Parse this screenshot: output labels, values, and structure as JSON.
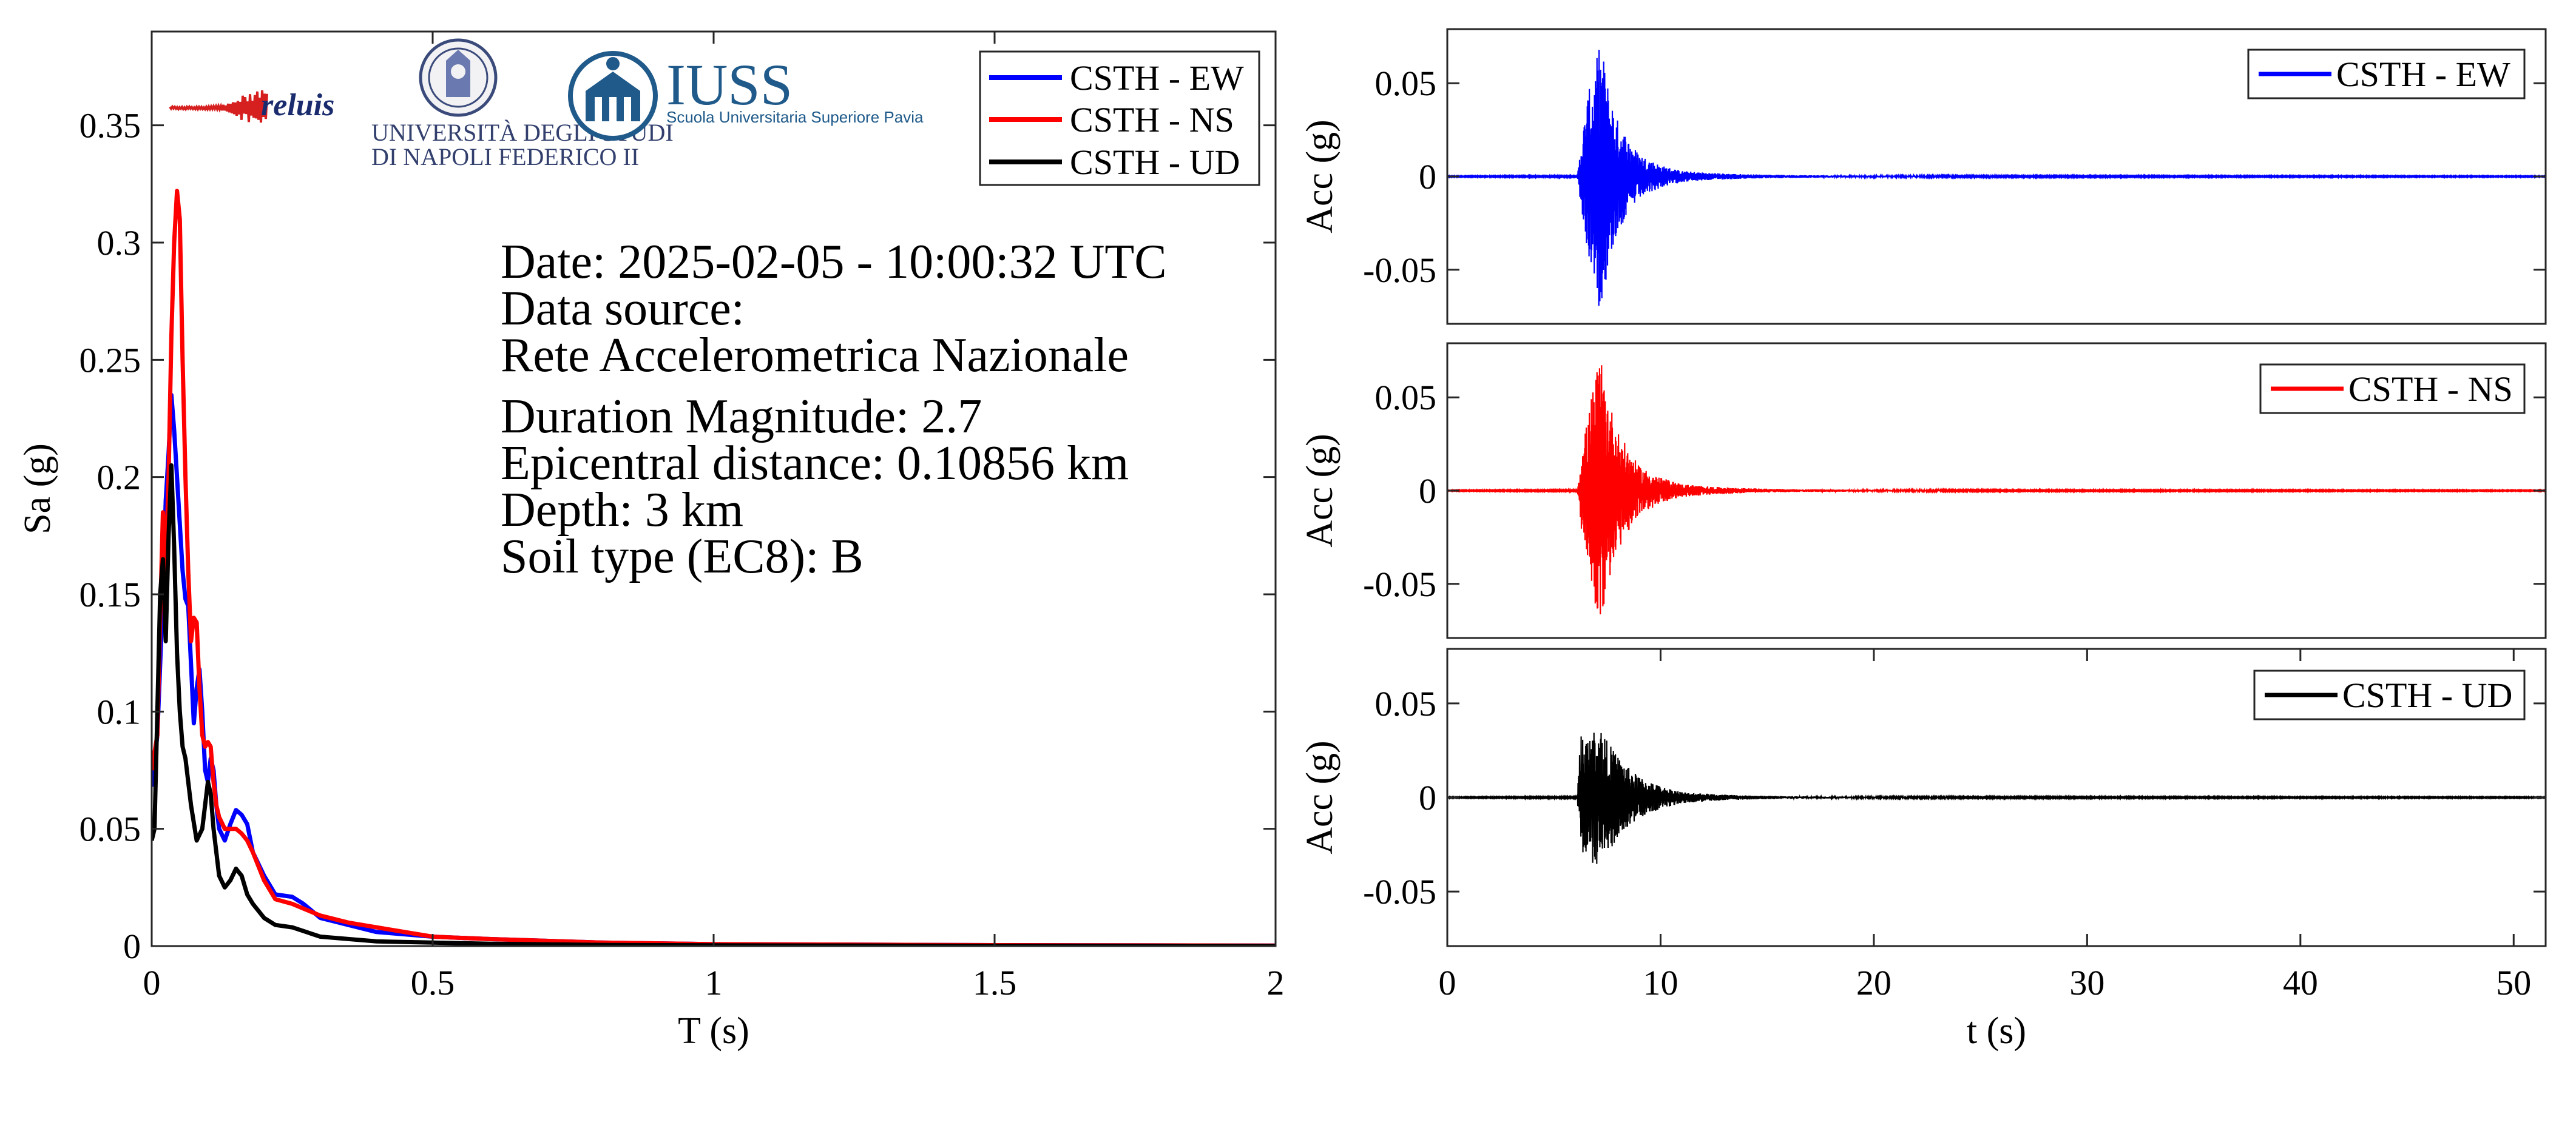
{
  "colors": {
    "ew": "#0000ff",
    "ns": "#ff0000",
    "ud": "#000000",
    "axis": "#262626"
  },
  "logos": {
    "reluis": "reluis",
    "unina_line1": "UNIVERSITÀ DEGLI STUDI",
    "unina_line2": "DI NAPOLI FEDERICO II",
    "iuss_title": "IUSS",
    "iuss_sub": "Scuola Universitaria Superiore Pavia",
    "icons": [
      "reluis-waveform-logo",
      "unina-seal-icon",
      "iuss-building-icon"
    ]
  },
  "info": {
    "date": "Date: 2025-02-05 - 10:00:32 UTC",
    "source_label": "Data source:",
    "source": "Rete Accelerometrica Nazionale",
    "magnitude": "Duration Magnitude: 2.7",
    "distance": "Epicentral distance: 0.10856 km",
    "depth": "Depth: 3 km",
    "soil": "Soil type (EC8): B"
  },
  "chart_data": [
    {
      "type": "line",
      "xlabel": "T (s)",
      "ylabel": "Sa (g)",
      "xlim": [
        0,
        2
      ],
      "ylim": [
        0,
        0.39
      ],
      "xticks": [
        "0",
        "0.5",
        "1",
        "1.5",
        "2"
      ],
      "xtick_values": [
        0,
        0.5,
        1,
        1.5,
        2
      ],
      "yticks": [
        "0",
        "0.05",
        "0.1",
        "0.15",
        "0.2",
        "0.25",
        "0.3",
        "0.35"
      ],
      "ytick_values": [
        0,
        0.05,
        0.1,
        0.15,
        0.2,
        0.25,
        0.3,
        0.35
      ],
      "legend_position": "top-right",
      "series": [
        {
          "name": "CSTH - EW",
          "color": "#0000ff",
          "x": [
            0,
            0.01,
            0.02,
            0.025,
            0.03,
            0.035,
            0.04,
            0.045,
            0.05,
            0.055,
            0.06,
            0.065,
            0.07,
            0.075,
            0.08,
            0.085,
            0.09,
            0.095,
            0.1,
            0.105,
            0.11,
            0.115,
            0.12,
            0.13,
            0.14,
            0.15,
            0.16,
            0.17,
            0.18,
            0.2,
            0.22,
            0.25,
            0.27,
            0.3,
            0.35,
            0.4,
            0.5,
            0.6,
            0.8,
            1.0,
            1.5,
            2.0
          ],
          "y": [
            0.068,
            0.09,
            0.15,
            0.19,
            0.21,
            0.235,
            0.22,
            0.2,
            0.18,
            0.16,
            0.148,
            0.145,
            0.12,
            0.095,
            0.11,
            0.118,
            0.1,
            0.075,
            0.07,
            0.08,
            0.075,
            0.06,
            0.05,
            0.045,
            0.052,
            0.058,
            0.056,
            0.052,
            0.04,
            0.03,
            0.022,
            0.021,
            0.018,
            0.012,
            0.009,
            0.006,
            0.004,
            0.003,
            0.0015,
            0.0008,
            0.0004,
            0.0002
          ]
        },
        {
          "name": "CSTH - NS",
          "color": "#ff0000",
          "x": [
            0,
            0.01,
            0.015,
            0.02,
            0.025,
            0.03,
            0.035,
            0.04,
            0.045,
            0.05,
            0.055,
            0.06,
            0.065,
            0.07,
            0.075,
            0.08,
            0.085,
            0.09,
            0.095,
            0.1,
            0.105,
            0.11,
            0.115,
            0.12,
            0.13,
            0.14,
            0.15,
            0.16,
            0.17,
            0.18,
            0.2,
            0.22,
            0.25,
            0.27,
            0.3,
            0.35,
            0.4,
            0.5,
            0.6,
            0.8,
            1.0,
            1.5,
            2.0
          ],
          "y": [
            0.075,
            0.09,
            0.14,
            0.185,
            0.16,
            0.2,
            0.26,
            0.3,
            0.322,
            0.31,
            0.25,
            0.2,
            0.16,
            0.13,
            0.14,
            0.138,
            0.11,
            0.09,
            0.085,
            0.087,
            0.085,
            0.07,
            0.06,
            0.055,
            0.05,
            0.05,
            0.05,
            0.048,
            0.045,
            0.04,
            0.028,
            0.02,
            0.018,
            0.016,
            0.013,
            0.01,
            0.008,
            0.004,
            0.003,
            0.0015,
            0.0008,
            0.0004,
            0.0002
          ]
        },
        {
          "name": "CSTH - UD",
          "color": "#000000",
          "x": [
            0,
            0.005,
            0.01,
            0.015,
            0.02,
            0.025,
            0.03,
            0.035,
            0.04,
            0.045,
            0.05,
            0.055,
            0.06,
            0.065,
            0.07,
            0.08,
            0.09,
            0.1,
            0.105,
            0.11,
            0.115,
            0.12,
            0.13,
            0.14,
            0.15,
            0.16,
            0.17,
            0.18,
            0.2,
            0.22,
            0.25,
            0.3,
            0.4,
            0.5,
            0.6,
            0.8,
            1.0,
            1.5,
            2.0
          ],
          "y": [
            0.045,
            0.05,
            0.1,
            0.15,
            0.165,
            0.13,
            0.175,
            0.205,
            0.17,
            0.125,
            0.1,
            0.085,
            0.08,
            0.07,
            0.06,
            0.045,
            0.05,
            0.07,
            0.065,
            0.05,
            0.04,
            0.03,
            0.025,
            0.028,
            0.033,
            0.03,
            0.022,
            0.018,
            0.012,
            0.009,
            0.008,
            0.004,
            0.002,
            0.0015,
            0.001,
            0.0005,
            0.0003,
            0.0001,
            0
          ]
        }
      ]
    },
    {
      "type": "line",
      "xlabel": "",
      "ylabel": "Acc (g)",
      "xlim": [
        0,
        51.5
      ],
      "ylim": [
        -0.079,
        0.079
      ],
      "yticks": [
        "-0.05",
        "0",
        "0.05"
      ],
      "ytick_values": [
        -0.05,
        0,
        0.05
      ],
      "legend_position": "top-right",
      "series": [
        {
          "name": "CSTH - EW",
          "color": "#0000ff",
          "envelope_t": [
            0,
            6.1,
            6.3,
            6.6,
            6.9,
            7.1,
            7.3,
            7.6,
            8.0,
            8.5,
            9.0,
            10.0,
            11.0,
            12.5,
            14.0,
            16.0,
            20.0,
            25.0,
            51.5
          ],
          "envelope_amp": [
            0.0002,
            0.0003,
            0.02,
            0.045,
            0.055,
            0.07,
            0.066,
            0.045,
            0.03,
            0.02,
            0.012,
            0.006,
            0.003,
            0.0018,
            0.0012,
            0.0008,
            0.0005,
            0.0003,
            0.0002
          ]
        }
      ]
    },
    {
      "type": "line",
      "xlabel": "",
      "ylabel": "Acc (g)",
      "xlim": [
        0,
        51.5
      ],
      "ylim": [
        -0.079,
        0.079
      ],
      "yticks": [
        "-0.05",
        "0",
        "0.05"
      ],
      "ytick_values": [
        -0.05,
        0,
        0.05
      ],
      "legend_position": "top-right",
      "series": [
        {
          "name": "CSTH - NS",
          "color": "#ff0000",
          "envelope_t": [
            0,
            6.1,
            6.3,
            6.6,
            6.9,
            7.1,
            7.3,
            7.6,
            8.0,
            8.5,
            9.0,
            10.0,
            11.0,
            12.5,
            14.0,
            16.0,
            20.0,
            25.0,
            51.5
          ],
          "envelope_amp": [
            0.0002,
            0.0003,
            0.022,
            0.04,
            0.06,
            0.072,
            0.065,
            0.048,
            0.032,
            0.022,
            0.013,
            0.007,
            0.0035,
            0.002,
            0.0013,
            0.0008,
            0.0005,
            0.0003,
            0.0002
          ]
        }
      ]
    },
    {
      "type": "line",
      "xlabel": "t (s)",
      "ylabel": "Acc (g)",
      "xlim": [
        0,
        51.5
      ],
      "ylim": [
        -0.079,
        0.079
      ],
      "xticks": [
        "0",
        "10",
        "20",
        "30",
        "40",
        "50"
      ],
      "xtick_values": [
        0,
        10,
        20,
        30,
        40,
        50
      ],
      "yticks": [
        "-0.05",
        "0",
        "0.05"
      ],
      "ytick_values": [
        -0.05,
        0,
        0.05
      ],
      "legend_position": "top-right",
      "series": [
        {
          "name": "CSTH - UD",
          "color": "#000000",
          "envelope_t": [
            0,
            6.1,
            6.25,
            6.6,
            6.9,
            7.2,
            7.5,
            8.0,
            8.5,
            9.0,
            10.0,
            11.0,
            12.5,
            14.0,
            16.0,
            20.0,
            25.0,
            51.5
          ],
          "envelope_amp": [
            0.0002,
            0.0003,
            0.036,
            0.032,
            0.036,
            0.038,
            0.03,
            0.022,
            0.016,
            0.011,
            0.006,
            0.003,
            0.0018,
            0.0011,
            0.0007,
            0.0004,
            0.0003,
            0.0002
          ]
        }
      ]
    }
  ]
}
